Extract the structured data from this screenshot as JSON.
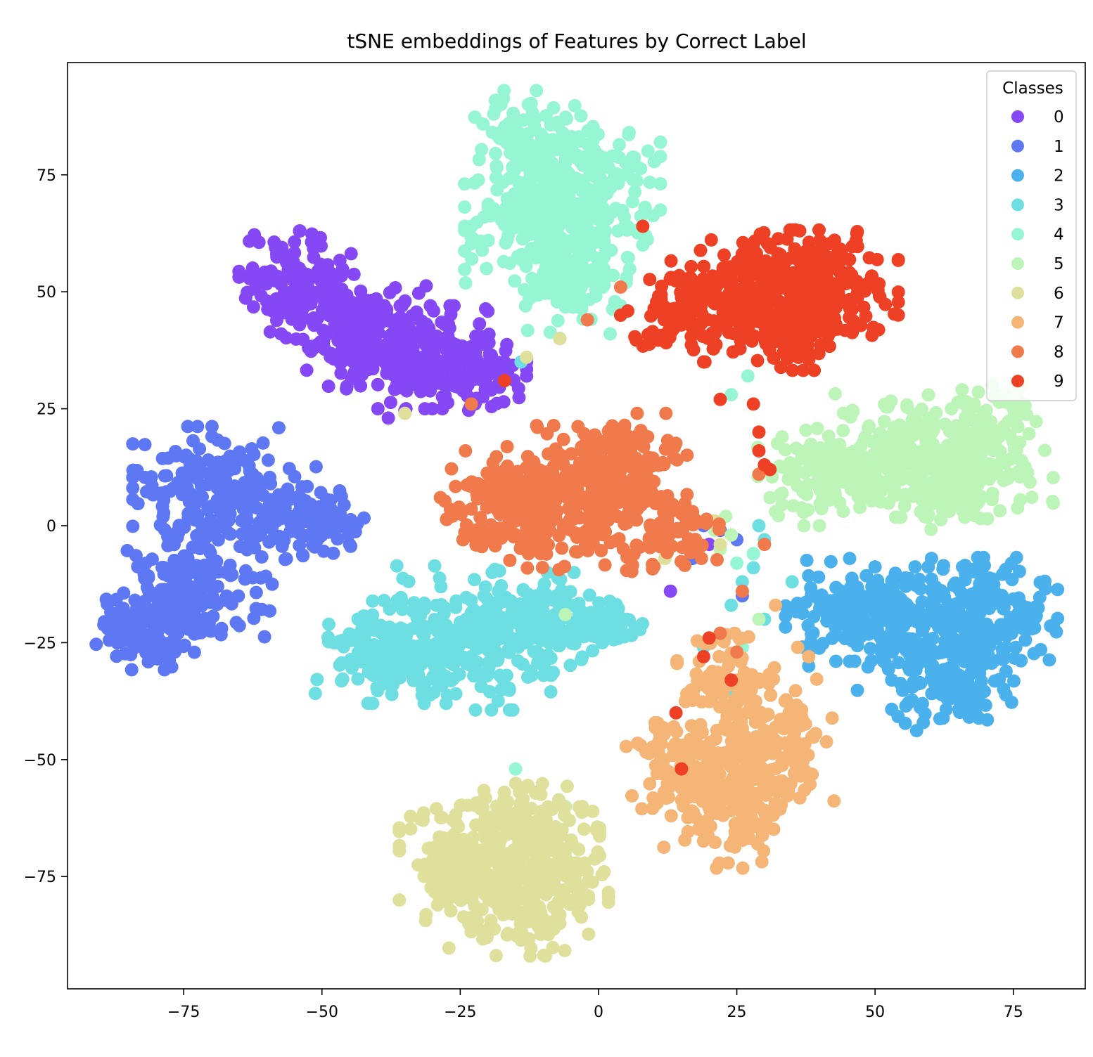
{
  "chart_data": {
    "type": "scatter",
    "title": "tSNE embeddings of Features by Correct Label",
    "xlabel": "",
    "ylabel": "",
    "xlim": [
      -96,
      88
    ],
    "ylim": [
      -99,
      99
    ],
    "xticks": [
      -75,
      -50,
      -25,
      0,
      25,
      50,
      75
    ],
    "yticks": [
      -75,
      -50,
      -25,
      0,
      25,
      50,
      75
    ],
    "xtick_labels": [
      "−75",
      "−50",
      "−25",
      "0",
      "25",
      "50",
      "75"
    ],
    "ytick_labels": [
      "−75",
      "−50",
      "−25",
      "0",
      "25",
      "50",
      "75"
    ],
    "grid": false,
    "legend": {
      "title": "Classes",
      "placement": "top-right"
    },
    "series": [
      {
        "name": "0",
        "color": "#8647f4",
        "clusters": [
          {
            "cx": -54,
            "cy": 52,
            "sx": 5,
            "sy": 5,
            "n": 120
          },
          {
            "cx": -44,
            "cy": 43,
            "sx": 6,
            "sy": 6,
            "n": 160
          },
          {
            "cx": -33,
            "cy": 36,
            "sx": 6,
            "sy": 5,
            "n": 160
          },
          {
            "cx": -24,
            "cy": 33,
            "sx": 5,
            "sy": 4,
            "n": 110
          }
        ],
        "points": [
          [
            -38,
            23
          ],
          [
            -17,
            35
          ],
          [
            -13,
            35
          ],
          [
            -11,
            -57
          ],
          [
            13,
            -14
          ],
          [
            17,
            -6
          ],
          [
            20,
            -4
          ]
        ]
      },
      {
        "name": "1",
        "color": "#5d78f2",
        "clusters": [
          {
            "cx": -81,
            "cy": -22,
            "sx": 5,
            "sy": 4,
            "n": 130
          },
          {
            "cx": -72,
            "cy": -12,
            "sx": 6,
            "sy": 6,
            "n": 140
          },
          {
            "cx": -71,
            "cy": 8,
            "sx": 6,
            "sy": 6,
            "n": 150
          },
          {
            "cx": -58,
            "cy": 3,
            "sx": 6,
            "sy": 5,
            "n": 110
          },
          {
            "cx": -49,
            "cy": 1,
            "sx": 3,
            "sy": 3,
            "n": 40
          }
        ],
        "points": [
          [
            -45,
            -4
          ],
          [
            19,
            0
          ],
          [
            22,
            -1
          ],
          [
            25,
            -3
          ],
          [
            17,
            -7
          ],
          [
            26,
            -15
          ]
        ]
      },
      {
        "name": "2",
        "color": "#4ab1ec",
        "clusters": [
          {
            "cx": 47,
            "cy": -18,
            "sx": 6,
            "sy": 5,
            "n": 150
          },
          {
            "cx": 60,
            "cy": -22,
            "sx": 6,
            "sy": 6,
            "n": 160
          },
          {
            "cx": 72,
            "cy": -20,
            "sx": 5,
            "sy": 6,
            "n": 150
          },
          {
            "cx": 64,
            "cy": -35,
            "sx": 5,
            "sy": 4,
            "n": 90
          }
        ],
        "points": [
          [
            -7,
            40
          ],
          [
            38,
            -30
          ],
          [
            28,
            -40
          ]
        ]
      },
      {
        "name": "3",
        "color": "#6ddfe2",
        "clusters": [
          {
            "cx": -38,
            "cy": -27,
            "sx": 6,
            "sy": 5,
            "n": 140
          },
          {
            "cx": -24,
            "cy": -24,
            "sx": 7,
            "sy": 7,
            "n": 210
          },
          {
            "cx": -10,
            "cy": -21,
            "sx": 6,
            "sy": 5,
            "n": 140
          },
          {
            "cx": 1,
            "cy": -22,
            "sx": 4,
            "sy": 3,
            "n": 50
          }
        ],
        "points": [
          [
            28,
            -6
          ],
          [
            30,
            -3
          ],
          [
            29,
            0
          ],
          [
            28,
            -9
          ],
          [
            26,
            -12
          ],
          [
            24,
            -17
          ],
          [
            35,
            -12
          ],
          [
            29,
            11
          ],
          [
            30,
            -20
          ],
          [
            19,
            -26
          ],
          [
            24,
            -35
          ],
          [
            -14,
            35
          ]
        ]
      },
      {
        "name": "4",
        "color": "#96f6d3",
        "clusters": [
          {
            "cx": -12,
            "cy": 82,
            "sx": 5,
            "sy": 5,
            "n": 110
          },
          {
            "cx": -11,
            "cy": 65,
            "sx": 6,
            "sy": 7,
            "n": 190
          },
          {
            "cx": -2,
            "cy": 72,
            "sx": 6,
            "sy": 7,
            "n": 160
          },
          {
            "cx": -5,
            "cy": 52,
            "sx": 5,
            "sy": 5,
            "n": 110
          }
        ],
        "points": [
          [
            4,
            47
          ],
          [
            5,
            52
          ],
          [
            8,
            60
          ],
          [
            27,
            32
          ],
          [
            24,
            28
          ],
          [
            26,
            -26
          ],
          [
            -15,
            -52
          ],
          [
            25,
            -8
          ],
          [
            28,
            -6
          ]
        ]
      },
      {
        "name": "5",
        "color": "#bdf5b8",
        "clusters": [
          {
            "cx": 42,
            "cy": 11,
            "sx": 6,
            "sy": 5,
            "n": 130
          },
          {
            "cx": 56,
            "cy": 15,
            "sx": 6,
            "sy": 6,
            "n": 160
          },
          {
            "cx": 69,
            "cy": 17,
            "sx": 6,
            "sy": 6,
            "n": 160
          },
          {
            "cx": 62,
            "cy": 8,
            "sx": 5,
            "sy": 4,
            "n": 90
          }
        ],
        "points": [
          [
            32,
            3
          ],
          [
            31,
            6
          ],
          [
            23,
            2
          ],
          [
            21,
            -1
          ],
          [
            12,
            -7
          ],
          [
            22,
            -5
          ],
          [
            24,
            -2
          ],
          [
            29,
            -20
          ],
          [
            -6,
            -19
          ],
          [
            -6,
            -60
          ]
        ]
      },
      {
        "name": "6",
        "color": "#dfe09b",
        "clusters": [
          {
            "cx": -25,
            "cy": -73,
            "sx": 5,
            "sy": 6,
            "n": 140
          },
          {
            "cx": -13,
            "cy": -66,
            "sx": 6,
            "sy": 6,
            "n": 150
          },
          {
            "cx": -15,
            "cy": -81,
            "sx": 6,
            "sy": 5,
            "n": 140
          },
          {
            "cx": -7,
            "cy": -74,
            "sx": 4,
            "sy": 5,
            "n": 80
          }
        ],
        "points": [
          [
            -35,
            24
          ],
          [
            -13,
            36
          ],
          [
            -7,
            40
          ],
          [
            12,
            -7
          ],
          [
            21,
            1
          ],
          [
            22,
            -4
          ]
        ]
      },
      {
        "name": "7",
        "color": "#f4b577",
        "clusters": [
          {
            "cx": 16,
            "cy": -52,
            "sx": 5,
            "sy": 5,
            "n": 110
          },
          {
            "cx": 25,
            "cy": -60,
            "sx": 6,
            "sy": 6,
            "n": 150
          },
          {
            "cx": 30,
            "cy": -46,
            "sx": 6,
            "sy": 6,
            "n": 140
          },
          {
            "cx": 23,
            "cy": -34,
            "sx": 4,
            "sy": 5,
            "n": 80
          }
        ],
        "points": [
          [
            38,
            -28
          ],
          [
            36,
            -26
          ],
          [
            32,
            -17
          ],
          [
            22,
            -23
          ],
          [
            20,
            -32
          ]
        ]
      },
      {
        "name": "8",
        "color": "#f07a4b",
        "clusters": [
          {
            "cx": -17,
            "cy": 5,
            "sx": 6,
            "sy": 5,
            "n": 150
          },
          {
            "cx": -3,
            "cy": 6,
            "sx": 7,
            "sy": 7,
            "n": 230
          },
          {
            "cx": 5,
            "cy": 13,
            "sx": 5,
            "sy": 5,
            "n": 110
          },
          {
            "cx": 13,
            "cy": -1,
            "sx": 4,
            "sy": 4,
            "n": 80
          }
        ],
        "points": [
          [
            -23,
            26
          ],
          [
            -2,
            44
          ],
          [
            4,
            51
          ],
          [
            12,
            -3
          ],
          [
            17,
            3
          ],
          [
            22,
            -23
          ],
          [
            25,
            -27
          ],
          [
            29,
            11
          ],
          [
            26,
            -14
          ],
          [
            30,
            -4
          ]
        ]
      },
      {
        "name": "9",
        "color": "#ee4024",
        "clusters": [
          {
            "cx": 16,
            "cy": 46,
            "sx": 5,
            "sy": 5,
            "n": 110
          },
          {
            "cx": 29,
            "cy": 51,
            "sx": 6,
            "sy": 6,
            "n": 180
          },
          {
            "cx": 41,
            "cy": 50,
            "sx": 6,
            "sy": 6,
            "n": 170
          },
          {
            "cx": 35,
            "cy": 42,
            "sx": 5,
            "sy": 4,
            "n": 90
          }
        ],
        "points": [
          [
            28,
            26
          ],
          [
            29,
            20
          ],
          [
            29,
            16
          ],
          [
            30,
            13
          ],
          [
            31,
            12
          ],
          [
            8,
            64
          ],
          [
            4,
            45
          ],
          [
            -17,
            31
          ],
          [
            14,
            -40
          ],
          [
            20,
            -24
          ],
          [
            24,
            -33
          ],
          [
            19,
            -28
          ],
          [
            15,
            -52
          ],
          [
            19,
            35
          ],
          [
            22,
            27
          ]
        ]
      }
    ]
  }
}
